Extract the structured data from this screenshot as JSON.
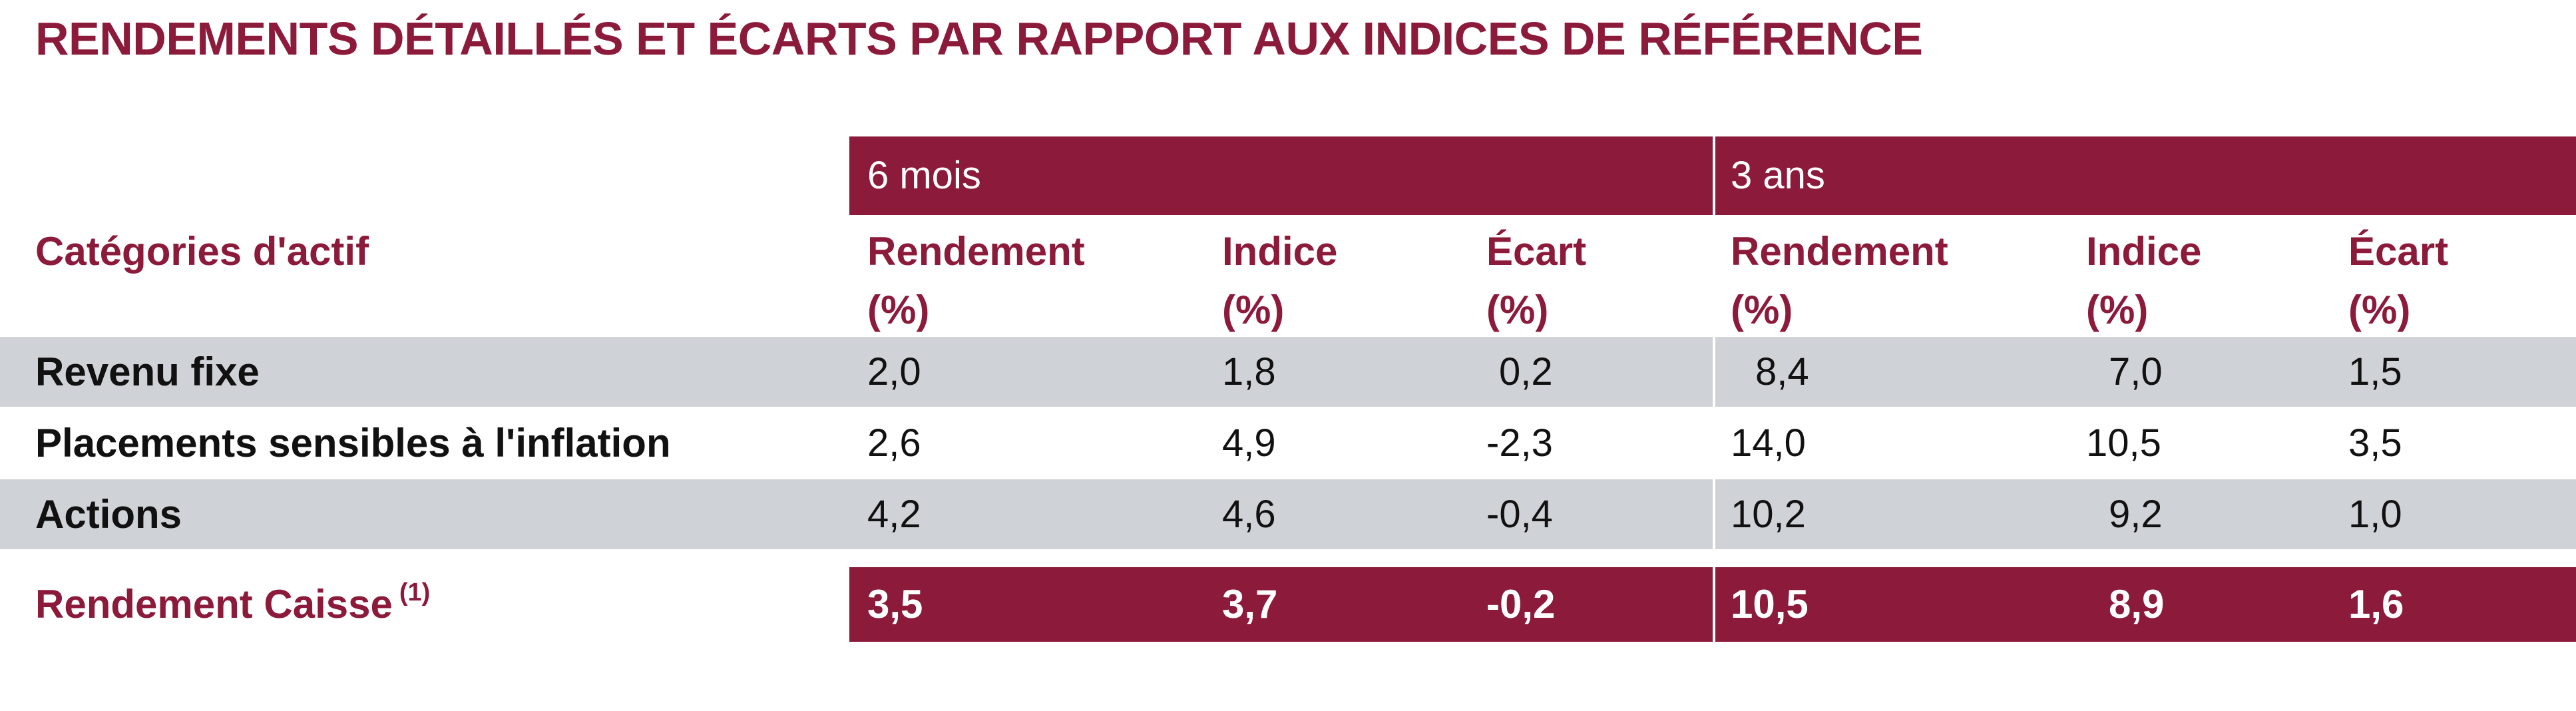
{
  "title": "RENDEMENTS DÉTAILLÉS ET ÉCARTS PAR RAPPORT AUX INDICES DE RÉFÉRENCE",
  "colors": {
    "accent": "#8c1a3a",
    "row_shade": "#cfd2d6",
    "text": "#111111"
  },
  "periods": [
    {
      "label": "6 mois"
    },
    {
      "label": "3 ans"
    }
  ],
  "category_header": "Catégories d'actif",
  "column_headers": [
    {
      "line1": "Rendement",
      "line2": "(%)"
    },
    {
      "line1": "Indice",
      "line2": "(%)"
    },
    {
      "line1": "Écart",
      "line2": "(%)"
    },
    {
      "line1": "Rendement",
      "line2": "(%)"
    },
    {
      "line1": "Indice",
      "line2": "(%)"
    },
    {
      "line1": "Écart",
      "line2": "(%)"
    }
  ],
  "rows": [
    {
      "label": "Revenu fixe",
      "values": [
        "2,0",
        "1,8",
        "0,2",
        "8,4",
        "7,0",
        "1,5"
      ]
    },
    {
      "label": "Placements sensibles à l'inflation",
      "values": [
        "2,6",
        "4,9",
        "-2,3",
        "14,0",
        "10,5",
        "3,5"
      ]
    },
    {
      "label": "Actions",
      "values": [
        "4,2",
        "4,6",
        "-0,4",
        "10,2",
        "9,2",
        "1,0"
      ]
    }
  ],
  "total": {
    "label": "Rendement Caisse",
    "footnote": "(1)",
    "values": [
      "3,5",
      "3,7",
      "-0,2",
      "10,5",
      "8,9",
      "1,6"
    ]
  }
}
